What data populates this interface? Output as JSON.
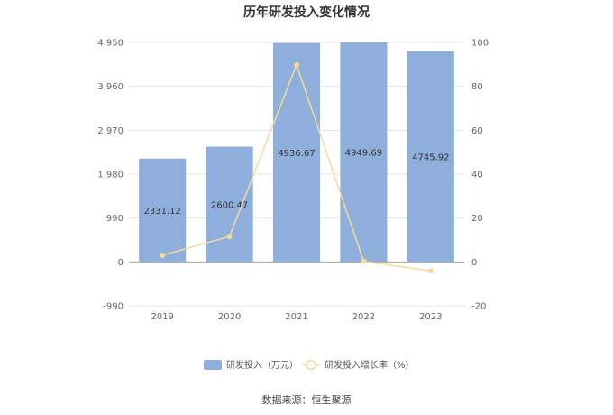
{
  "chart_data": {
    "type": "bar",
    "title": "历年研发投入变化情况",
    "categories": [
      "2019",
      "2020",
      "2021",
      "2022",
      "2023"
    ],
    "series": [
      {
        "name": "研发投入（万元）",
        "type": "bar",
        "axis": "left",
        "color": "#8eaedc",
        "values": [
          2331.12,
          2600.47,
          4936.67,
          4949.69,
          4745.92
        ],
        "labels": [
          "2331.12",
          "2600.47",
          "4936.67",
          "4949.69",
          "4745.92"
        ]
      },
      {
        "name": "研发投入增长率（%）",
        "type": "line",
        "axis": "right",
        "color": "#f7d899",
        "values": [
          3.0,
          11.6,
          89.8,
          0.3,
          -4.1
        ]
      }
    ],
    "y_left": {
      "ticks": [
        "4,950",
        "3,960",
        "2,970",
        "1,980",
        "990",
        "0",
        "-990"
      ],
      "tick_values": [
        4950,
        3960,
        2970,
        1980,
        990,
        0,
        -990
      ],
      "ylim": [
        -990,
        4950
      ]
    },
    "y_right": {
      "ticks": [
        "100",
        "80",
        "60",
        "40",
        "20",
        "0",
        "-20"
      ],
      "tick_values": [
        100,
        80,
        60,
        40,
        20,
        0,
        -20
      ],
      "ylim": [
        -20,
        100
      ]
    },
    "grid": true,
    "legend_position": "bottom"
  },
  "source": "数据来源：恒生聚源"
}
